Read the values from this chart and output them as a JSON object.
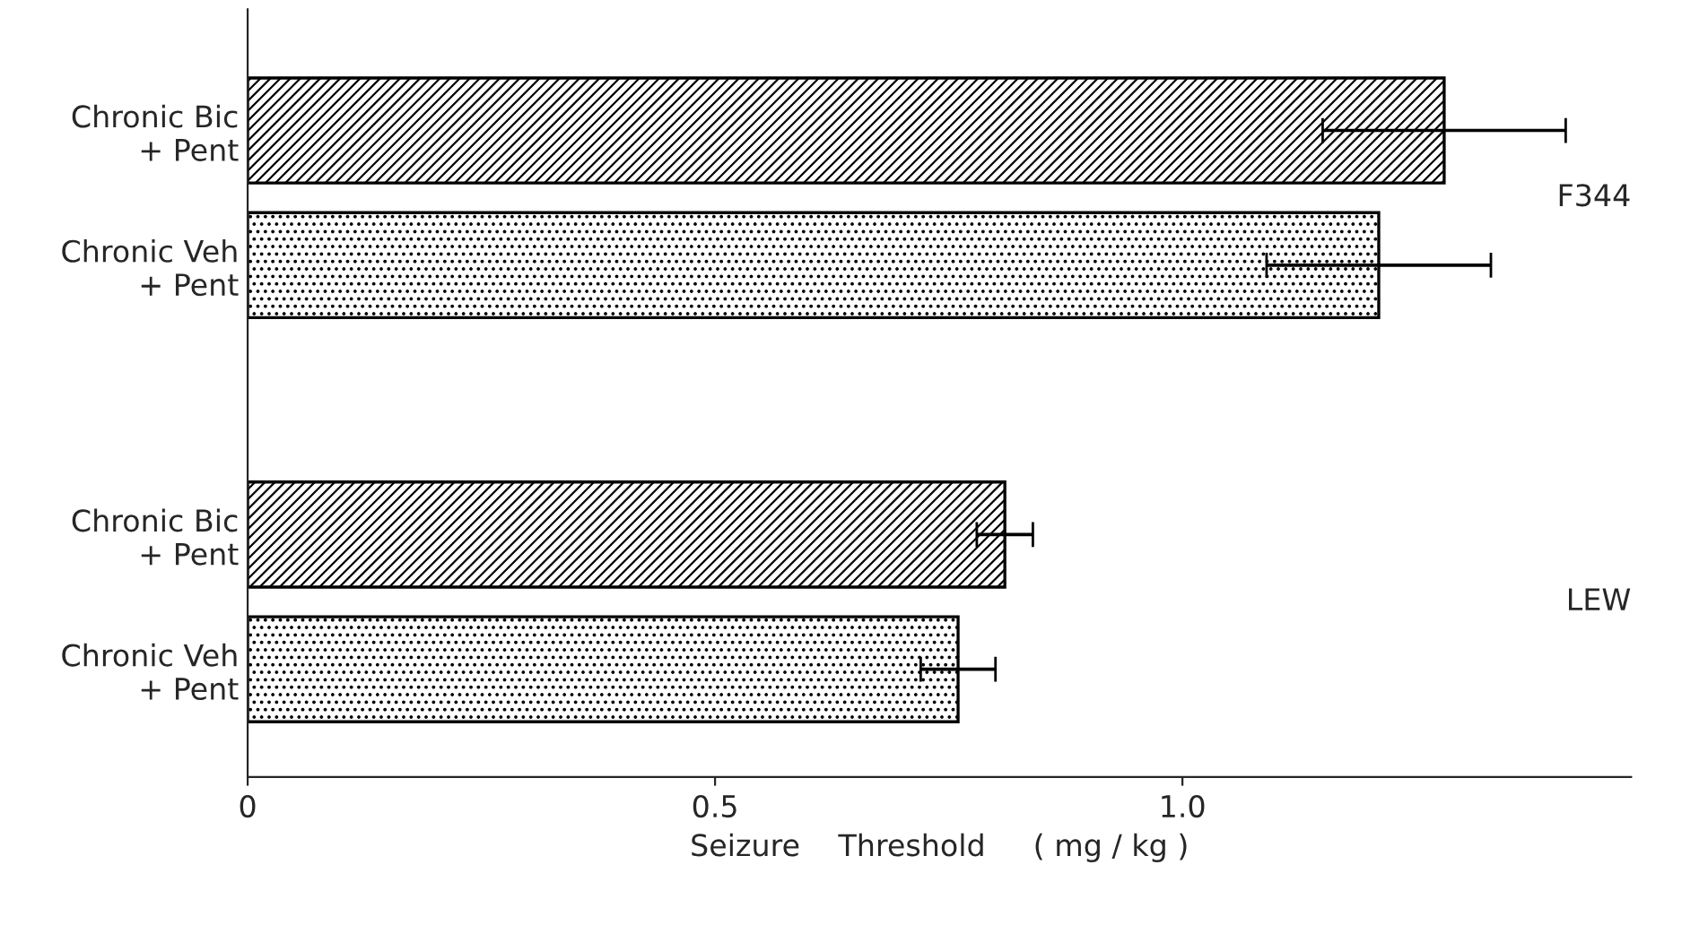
{
  "chart_data": {
    "type": "bar",
    "orientation": "horizontal",
    "xlabel": "Seizure    Threshold     ( mg / kg )",
    "categories": [
      "Chronic Bic\n+ Pent",
      "Chronic Veh\n+ Pent",
      null,
      "Chronic Bic\n+ Pent",
      "Chronic Veh\n+ Pent"
    ],
    "values": [
      1.28,
      1.21,
      null,
      0.81,
      0.76
    ],
    "errors": [
      0.13,
      0.12,
      null,
      0.03,
      0.04
    ],
    "colors": [
      "#000000",
      "#000000",
      "#000000",
      "#000000",
      "#000000"
    ],
    "xlim": [
      0,
      1.48
    ],
    "xticks": [
      0,
      {
        "value": 0.5,
        "label": "0.5"
      },
      {
        "value": 1.0,
        "label": "1.0"
      }
    ],
    "annotations": [
      "F344",
      "LEW"
    ],
    "grid": false,
    "legend": false
  }
}
